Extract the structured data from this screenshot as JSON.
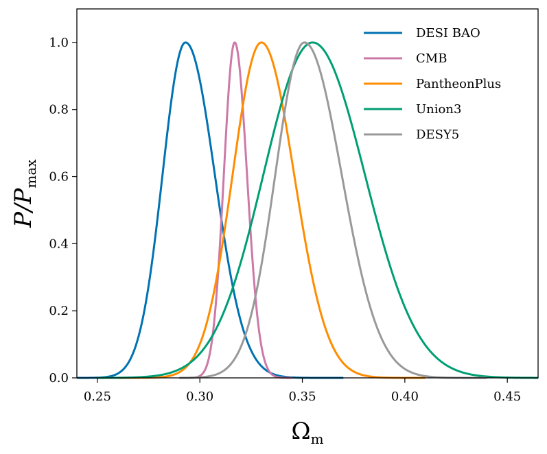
{
  "chart_data": {
    "type": "line",
    "title": "",
    "xlabel": {
      "main": "Ω",
      "sub": "m"
    },
    "ylabel": {
      "main": "P/P",
      "sub": "max"
    },
    "xlim": [
      0.24,
      0.465
    ],
    "ylim": [
      0,
      1.1
    ],
    "xticks": [
      0.25,
      0.3,
      0.35,
      0.4,
      0.45
    ],
    "xtick_labels": [
      "0.25",
      "0.30",
      "0.35",
      "0.40",
      "0.45"
    ],
    "yticks": [
      0.0,
      0.2,
      0.4,
      0.6,
      0.8,
      1.0
    ],
    "ytick_labels": [
      "0.0",
      "0.2",
      "0.4",
      "0.6",
      "0.8",
      "1.0"
    ],
    "grid": false,
    "legend_position": "top-right",
    "series": [
      {
        "name": "DESI BAO",
        "color": "#0072B2",
        "peak": 0.293,
        "sigma_left": 0.0112,
        "sigma_right": 0.0143,
        "x_range": [
          0.24,
          0.37
        ]
      },
      {
        "name": "CMB",
        "color": "#CC79A7",
        "peak": 0.317,
        "sigma_left": 0.0053,
        "sigma_right": 0.006,
        "x_range": [
          0.29,
          0.345
        ]
      },
      {
        "name": "PantheonPlus",
        "color": "#FF8C00",
        "peak": 0.33,
        "sigma_left": 0.014,
        "sigma_right": 0.016,
        "x_range": [
          0.26,
          0.41
        ]
      },
      {
        "name": "Union3",
        "color": "#009E73",
        "peak": 0.355,
        "sigma_left": 0.024,
        "sigma_right": 0.0255,
        "x_range": [
          0.25,
          0.465
        ]
      },
      {
        "name": "DESY5",
        "color": "#999999",
        "peak": 0.351,
        "sigma_left": 0.0142,
        "sigma_right": 0.0182,
        "x_range": [
          0.29,
          0.44
        ]
      }
    ]
  }
}
